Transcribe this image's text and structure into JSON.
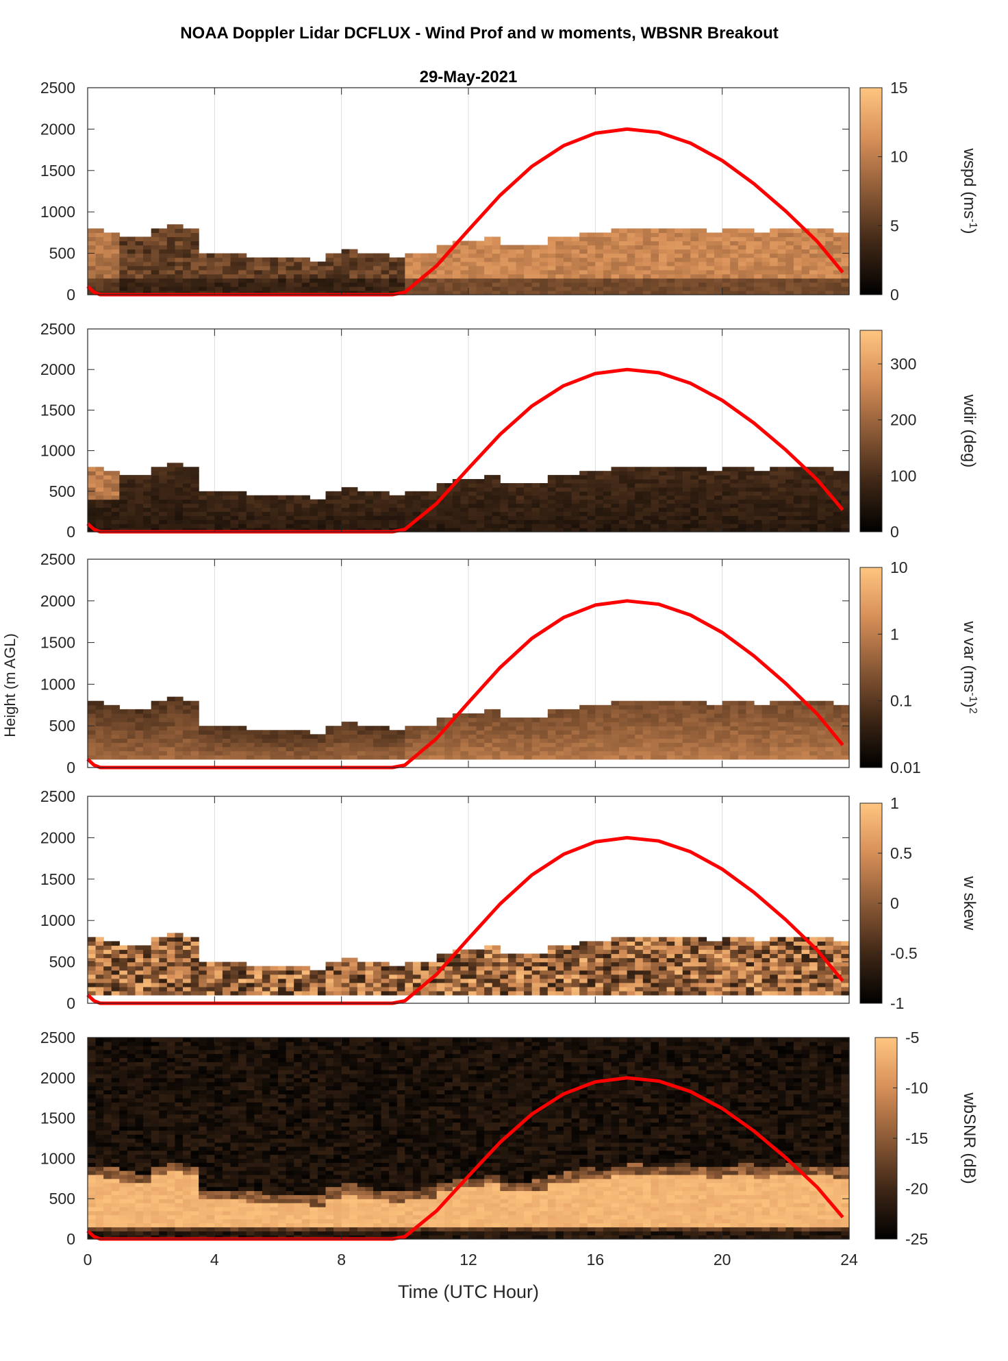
{
  "figure": {
    "title": "NOAA Doppler Lidar DCFLUX - Wind Prof and w moments, WBSNR Breakout",
    "date": "29-May-2021",
    "xlabel": "Time (UTC Hour)",
    "ylabel": "Height (m AGL)"
  },
  "colors": {
    "sun_curve": "#ff0000",
    "cmap_low": "#000000",
    "cmap_high": "#ffc580"
  },
  "chart_data": [
    {
      "type": "heatmap",
      "name": "wspd",
      "xlim": [
        0,
        24
      ],
      "ylim": [
        0,
        2500
      ],
      "x_ticks": [
        0,
        4,
        8,
        12,
        16,
        20,
        24
      ],
      "y_ticks": [
        "0",
        "500",
        "1000",
        "1500",
        "2000",
        "2500"
      ],
      "colorbar_label": "wspd (ms-1)",
      "colorbar_label_main": "wspd (ms",
      "colorbar_label_sup": "-1",
      "colorbar_label_end": ")",
      "clim": [
        0,
        15
      ],
      "colorbar_ticks": [
        "0",
        "5",
        "10",
        "15"
      ]
    },
    {
      "type": "heatmap",
      "name": "wdir",
      "xlim": [
        0,
        24
      ],
      "ylim": [
        0,
        2500
      ],
      "x_ticks": [
        0,
        4,
        8,
        12,
        16,
        20,
        24
      ],
      "y_ticks": [
        "0",
        "500",
        "1000",
        "1500",
        "2000",
        "2500"
      ],
      "colorbar_label": "wdir (deg)",
      "clim": [
        0,
        360
      ],
      "colorbar_ticks": [
        "0",
        "100",
        "200",
        "300"
      ]
    },
    {
      "type": "heatmap",
      "name": "w var",
      "xlim": [
        0,
        24
      ],
      "ylim": [
        0,
        2500
      ],
      "x_ticks": [
        0,
        4,
        8,
        12,
        16,
        20,
        24
      ],
      "y_ticks": [
        "0",
        "500",
        "1000",
        "1500",
        "2000",
        "2500"
      ],
      "colorbar_label": "w var (ms-1)2",
      "colorbar_label_main": "w var (ms",
      "colorbar_label_sup": "-1",
      "colorbar_label_end": ")",
      "colorbar_label_sup2": "2",
      "clim": [
        0.01,
        10
      ],
      "colorbar_scale": "log",
      "colorbar_ticks": [
        "0.01",
        "0.1",
        "1",
        "10"
      ]
    },
    {
      "type": "heatmap",
      "name": "w skew",
      "xlim": [
        0,
        24
      ],
      "ylim": [
        0,
        2500
      ],
      "x_ticks": [
        0,
        4,
        8,
        12,
        16,
        20,
        24
      ],
      "y_ticks": [
        "0",
        "500",
        "1000",
        "1500",
        "2000",
        "2500"
      ],
      "colorbar_label": "w skew",
      "clim": [
        -1,
        1
      ],
      "colorbar_ticks": [
        "-1",
        "-0.5",
        "0",
        "0.5",
        "1"
      ]
    },
    {
      "type": "heatmap",
      "name": "wbSNR",
      "xlim": [
        0,
        24
      ],
      "ylim": [
        0,
        2500
      ],
      "x_ticks": [
        0,
        4,
        8,
        12,
        16,
        20,
        24
      ],
      "y_ticks": [
        "0",
        "500",
        "1000",
        "1500",
        "2000",
        "2500"
      ],
      "colorbar_label": "wbSNR (dB)",
      "clim": [
        -25,
        -5
      ],
      "colorbar_ticks": [
        "-25",
        "-20",
        "-15",
        "-10",
        "-5"
      ]
    }
  ],
  "x_tick_labels": [
    "0",
    "4",
    "8",
    "12",
    "16",
    "20",
    "24"
  ],
  "boundary_layer_top": {
    "x": [
      0.25,
      0.75,
      1.25,
      1.75,
      2.25,
      2.75,
      3.25,
      3.75,
      4.25,
      4.75,
      5.25,
      5.75,
      6.25,
      6.75,
      7.25,
      7.75,
      8.25,
      8.75,
      9.25,
      9.75,
      10.25,
      10.75,
      11.25,
      11.75,
      12.25,
      12.75,
      13.25,
      13.75,
      14.25,
      14.75,
      15.25,
      15.75,
      16.25,
      16.75,
      17.25,
      17.75,
      18.25,
      18.75,
      19.25,
      19.75,
      20.25,
      20.75,
      21.25,
      21.75,
      22.25,
      22.75,
      23.25,
      23.75
    ],
    "y": [
      800,
      760,
      710,
      680,
      780,
      850,
      800,
      500,
      490,
      480,
      470,
      450,
      440,
      430,
      420,
      520,
      560,
      520,
      490,
      470,
      480,
      520,
      600,
      650,
      640,
      700,
      600,
      580,
      620,
      680,
      720,
      760,
      740,
      800,
      820,
      780,
      800,
      820,
      780,
      760,
      800,
      820,
      760,
      780,
      820,
      800,
      780,
      760
    ]
  },
  "sun_elevation_curve": {
    "x": [
      0.0,
      0.2,
      0.4,
      9.6,
      10.0,
      11.0,
      12.0,
      13.0,
      14.0,
      15.0,
      16.0,
      17.0,
      18.0,
      19.0,
      20.0,
      21.0,
      22.0,
      23.0,
      23.8
    ],
    "y": [
      100,
      30,
      0,
      0,
      30,
      350,
      780,
      1200,
      1550,
      1800,
      1950,
      2000,
      1960,
      1830,
      1620,
      1340,
      1010,
      640,
      270
    ]
  }
}
